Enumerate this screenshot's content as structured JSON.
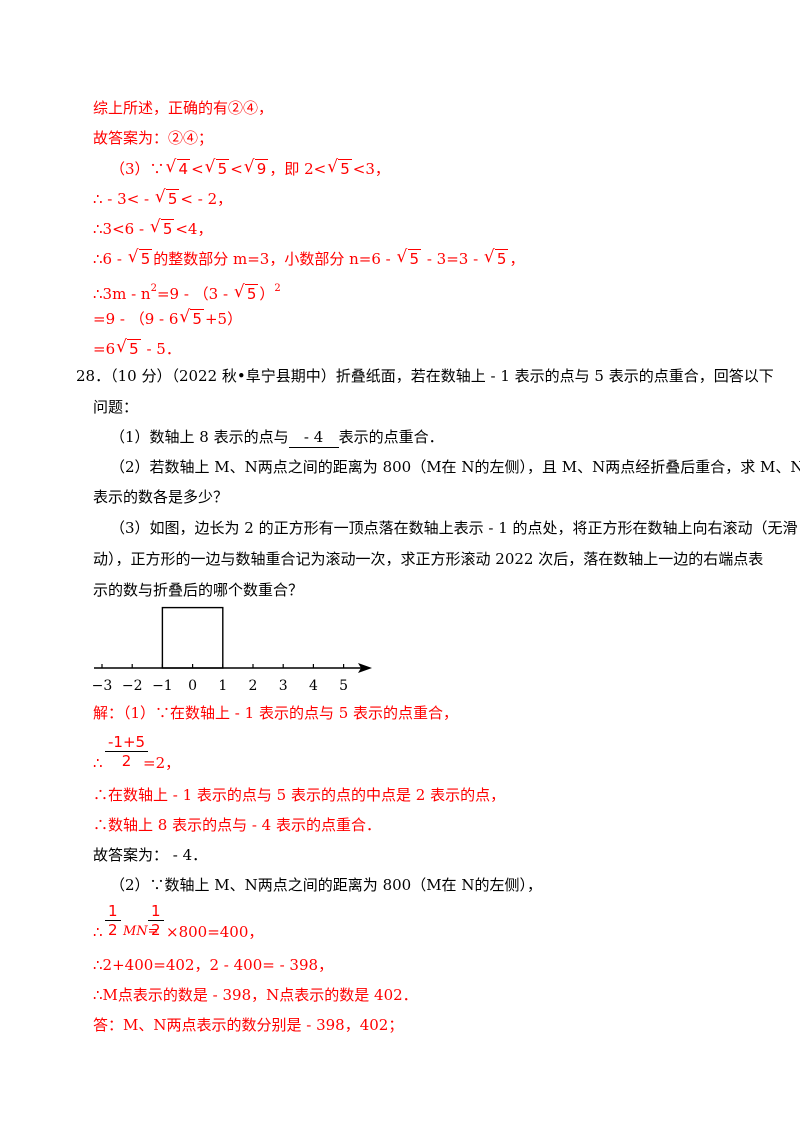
{
  "solution_part_a": [
    "综上所述，正确的有②④，",
    "故答案为：②④；"
  ],
  "part3": {
    "l1a": "（3）∵",
    "r4": "4",
    "lt1": "<",
    "r5": "5",
    "lt2": "<",
    "r9": "9",
    "l1b": "，即 2<",
    "l1c": "<3，",
    "l2a": "∴ - 3< - ",
    "l2b": "< - 2，",
    "l3a": "∴3<6 - ",
    "l3b": "<4，",
    "l4a": "∴6 - ",
    "l4b": "的整数部分 m=3，小数部分 n=6 - ",
    "l4c": " - 3=3 - ",
    "l4d": "，",
    "l5a": "∴3m - n",
    "l5sup1": "2",
    "l5b": "=9 - （3 - ",
    "l5c": "）",
    "l5sup2": "2",
    "l6a": "=9 - （9 - 6",
    "l6b": "+5）",
    "l7a": "=6",
    "l7b": " - 5．"
  },
  "question": {
    "number": "28．",
    "text1": "（10 分）（2022 秋•阜宁县期中）折叠纸面，若在数轴上 - 1 表示的点与 5 表示的点重合，回答以下",
    "text2": "问题：",
    "q1a": "（1）数轴上 8 表示的点与",
    "q1blank": " - 4",
    "q1b": "表示的点重合．",
    "q2a": "（2）若数轴上 M、N两点之间的距离为 800（M在 N的左侧），且 M、N两点经折叠后重合，求 M、N两点",
    "q2b": "表示的数各是多少？",
    "q3a": "（3）如图，边长为 2 的正方形有一顶点落在数轴上表示 - 1 的点处，将正方形在数轴上向右滚动（无滑",
    "q3b": "动），正方形的一边与数轴重合记为滚动一次，求正方形滚动 2022 次后，落在数轴上一边的右端点表",
    "q3c": "示的数与折叠后的哪个数重合？"
  },
  "number_line": {
    "ticks": [
      "−3",
      "−2",
      "−1",
      "0",
      "1",
      "2",
      "3",
      "4",
      "5"
    ],
    "square_from": -1,
    "square_to": 1
  },
  "answer": {
    "s1": "解：（1）∵在数轴上 - 1 表示的点与 5 表示的点重合，",
    "f1num": "-1+5",
    "f1den": "2",
    "s2a": "∴",
    "s2b": "=2，",
    "s3": "∴在数轴上 - 1 表示的点与 5 表示的点的中点是 2 表示的点，",
    "s4": "∴数轴上 8 表示的点与 - 4 表示的点重合．",
    "s5": "故答案为： - 4．",
    "s6": "（2）∵数轴上 M、N两点之间的距离为 800（M在 N的左侧），",
    "f2num": "1",
    "f2den": "2",
    "f3num": "1",
    "f3den": "2",
    "s7a": "∴",
    "s7b": "MN=",
    "s7c": "×800=400，",
    "s8": "∴2+400=402，2 - 400= - 398，",
    "s9": "∴M点表示的数是 - 398，N点表示的数是 402．",
    "s10": "答：M、N两点表示的数分别是 - 398，402；"
  }
}
